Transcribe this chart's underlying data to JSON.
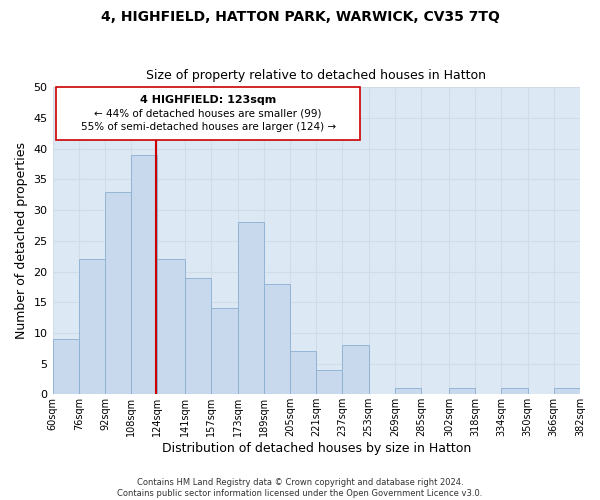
{
  "title1": "4, HIGHFIELD, HATTON PARK, WARWICK, CV35 7TQ",
  "title2": "Size of property relative to detached houses in Hatton",
  "xlabel": "Distribution of detached houses by size in Hatton",
  "ylabel": "Number of detached properties",
  "bar_color": "#c8d9ed",
  "bar_edge_color": "#8ab0d0",
  "bins": [
    60,
    76,
    92,
    108,
    124,
    141,
    157,
    173,
    189,
    205,
    221,
    237,
    253,
    269,
    285,
    302,
    318,
    334,
    350,
    366,
    382
  ],
  "counts": [
    9,
    22,
    33,
    39,
    22,
    19,
    14,
    28,
    18,
    7,
    4,
    8,
    0,
    1,
    0,
    1,
    0,
    1,
    0,
    1
  ],
  "tick_labels": [
    "60sqm",
    "76sqm",
    "92sqm",
    "108sqm",
    "124sqm",
    "141sqm",
    "157sqm",
    "173sqm",
    "189sqm",
    "205sqm",
    "221sqm",
    "237sqm",
    "253sqm",
    "269sqm",
    "285sqm",
    "302sqm",
    "318sqm",
    "334sqm",
    "350sqm",
    "366sqm",
    "382sqm"
  ],
  "vline_x": 123,
  "vline_color": "#cc0000",
  "ylim": [
    0,
    50
  ],
  "yticks": [
    0,
    5,
    10,
    15,
    20,
    25,
    30,
    35,
    40,
    45,
    50
  ],
  "annotation_title": "4 HIGHFIELD: 123sqm",
  "annotation_line1": "← 44% of detached houses are smaller (99)",
  "annotation_line2": "55% of semi-detached houses are larger (124) →",
  "footer1": "Contains HM Land Registry data © Crown copyright and database right 2024.",
  "footer2": "Contains public sector information licensed under the Open Government Licence v3.0.",
  "grid_color": "#d0dce8",
  "bg_color": "#dce9f5",
  "title1_fontsize": 10,
  "title2_fontsize": 9
}
